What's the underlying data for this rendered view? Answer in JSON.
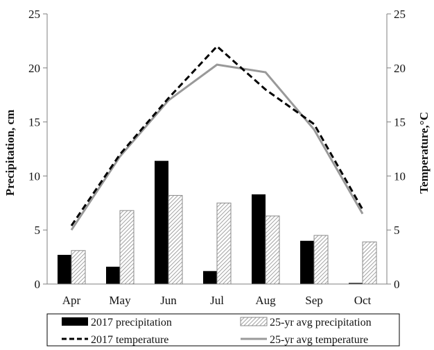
{
  "chart_data": {
    "type": "bar",
    "categories": [
      "Apr",
      "May",
      "Jun",
      "Jul",
      "Aug",
      "Sep",
      "Oct"
    ],
    "series": [
      {
        "name": "2017 precipitation",
        "kind": "bar",
        "axis": "left",
        "style": "solid-black",
        "values": [
          2.7,
          1.6,
          11.4,
          1.2,
          8.3,
          4.0,
          0.1
        ]
      },
      {
        "name": "25-yr avg precipitation",
        "kind": "bar",
        "axis": "left",
        "style": "hatched-gray",
        "values": [
          3.1,
          6.8,
          8.2,
          7.5,
          6.3,
          4.5,
          3.9
        ]
      },
      {
        "name": "2017 temperature",
        "kind": "line",
        "axis": "right",
        "style": "dashed-black",
        "values": [
          5.4,
          12.0,
          17.2,
          22.0,
          18.0,
          14.8,
          6.9
        ]
      },
      {
        "name": "25-yr avg temperature",
        "kind": "line",
        "axis": "right",
        "style": "solid-gray",
        "values": [
          5.0,
          11.8,
          17.0,
          20.3,
          19.6,
          14.3,
          6.5
        ]
      }
    ],
    "ylabel": "Precipitation, cm",
    "y2label": "Temperature,°C",
    "ylim": [
      0,
      25
    ],
    "y2lim": [
      0,
      25
    ],
    "yticks": [
      "0",
      "5",
      "10",
      "15",
      "20",
      "25"
    ],
    "y2ticks": [
      "0",
      "5",
      "10",
      "15",
      "20",
      "25"
    ],
    "grid": false,
    "legend_position": "bottom",
    "colors": {
      "precip_2017": "#000000",
      "precip_avg_hatch": "#8a8a8a",
      "temp_2017": "#000000",
      "temp_avg": "#999999"
    }
  }
}
